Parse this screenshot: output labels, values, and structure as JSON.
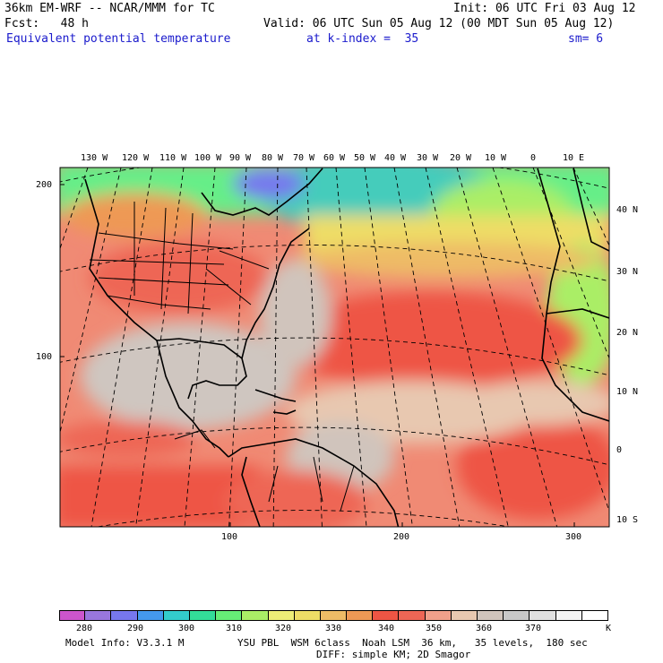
{
  "header": {
    "line1_left": "36km EM-WRF -- NCAR/MMM for TC",
    "line1_right": "Init: 06 UTC Fri 03 Aug 12",
    "line2_left": "Fcst:   48 h",
    "line2_right": "Valid: 06 UTC Sun 05 Aug 12 (00 MDT Sun 05 Aug 12)",
    "field_name": "Equivalent potential temperature",
    "level": "at k-index =  35",
    "smoothing": "sm= 6"
  },
  "map": {
    "top_lon_labels": [
      "130 W",
      "120 W",
      "110 W",
      "100 W",
      "90 W",
      "80 W",
      "70 W",
      "60 W",
      "50 W",
      "40 W",
      "30 W",
      "20 W",
      "10 W",
      "0",
      "10 E"
    ],
    "right_lat_labels": [
      "40 N",
      "30 N",
      "20 N",
      "10 N",
      "0",
      "10 S"
    ],
    "left_grid_labels": [
      "200",
      "100"
    ],
    "bottom_grid_labels": [
      "100",
      "200",
      "300"
    ]
  },
  "colorbar": {
    "labels": [
      "280",
      "290",
      "300",
      "310",
      "320",
      "330",
      "340",
      "350",
      "360",
      "370"
    ],
    "unit": "K",
    "colors": [
      "#cc55cc",
      "#9977dd",
      "#7777ee",
      "#4499ee",
      "#33cccc",
      "#33dd99",
      "#66ee77",
      "#aaee66",
      "#eeee77",
      "#eedd66",
      "#eebb66",
      "#ee9955",
      "#ee5544",
      "#ee6655",
      "#f0a08a",
      "#e8c8b0",
      "#d0c4bc",
      "#c8c8c8",
      "#e0e0e0",
      "#f4f4f4",
      "#ffffff"
    ]
  },
  "footer": {
    "model_info": "Model Info: V3.3.1 M",
    "physics": "YSU PBL  WSM 6class  Noah LSM  36 km,   35 levels,  180 sec",
    "diffusion": "DIFF: simple KM; 2D Smagor"
  }
}
